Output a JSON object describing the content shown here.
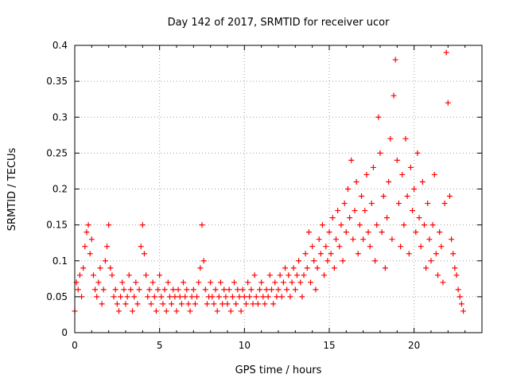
{
  "chart_data": {
    "type": "scatter",
    "title": "Day 142 of 2017, SRMTID for receiver ucor",
    "xlabel": "GPS time / hours",
    "ylabel": "SRMTID / TECUs",
    "xlim": [
      0,
      24
    ],
    "ylim": [
      0,
      0.4
    ],
    "xticks": [
      0,
      5,
      10,
      15,
      20
    ],
    "xtick_labels": [
      "0",
      "5",
      "10",
      "15",
      "20"
    ],
    "yticks": [
      0,
      0.05,
      0.1,
      0.15,
      0.2,
      0.25,
      0.3,
      0.35,
      0.4
    ],
    "ytick_labels": [
      "0",
      "0.05",
      "0.1",
      "0.15",
      "0.2",
      "0.25",
      "0.3",
      "0.35",
      "0.4"
    ],
    "grid": true,
    "marker": "plus",
    "color": "#ff0000",
    "series": [
      {
        "name": "SRMTID",
        "points": [
          [
            0.0,
            0.03
          ],
          [
            0.1,
            0.07
          ],
          [
            0.2,
            0.06
          ],
          [
            0.3,
            0.08
          ],
          [
            0.4,
            0.05
          ],
          [
            0.5,
            0.09
          ],
          [
            0.6,
            0.12
          ],
          [
            0.7,
            0.14
          ],
          [
            0.8,
            0.15
          ],
          [
            0.9,
            0.11
          ],
          [
            1.0,
            0.13
          ],
          [
            1.1,
            0.08
          ],
          [
            1.2,
            0.06
          ],
          [
            1.3,
            0.05
          ],
          [
            1.4,
            0.07
          ],
          [
            1.5,
            0.09
          ],
          [
            1.6,
            0.04
          ],
          [
            1.7,
            0.06
          ],
          [
            1.8,
            0.1
          ],
          [
            1.9,
            0.12
          ],
          [
            2.0,
            0.15
          ],
          [
            2.1,
            0.09
          ],
          [
            2.2,
            0.08
          ],
          [
            2.3,
            0.05
          ],
          [
            2.4,
            0.06
          ],
          [
            2.5,
            0.04
          ],
          [
            2.6,
            0.03
          ],
          [
            2.7,
            0.05
          ],
          [
            2.8,
            0.07
          ],
          [
            2.9,
            0.06
          ],
          [
            3.0,
            0.04
          ],
          [
            3.1,
            0.05
          ],
          [
            3.2,
            0.08
          ],
          [
            3.3,
            0.06
          ],
          [
            3.4,
            0.03
          ],
          [
            3.5,
            0.05
          ],
          [
            3.6,
            0.07
          ],
          [
            3.7,
            0.04
          ],
          [
            3.8,
            0.06
          ],
          [
            3.9,
            0.12
          ],
          [
            4.0,
            0.15
          ],
          [
            4.1,
            0.11
          ],
          [
            4.2,
            0.08
          ],
          [
            4.3,
            0.05
          ],
          [
            4.4,
            0.06
          ],
          [
            4.5,
            0.04
          ],
          [
            4.6,
            0.07
          ],
          [
            4.7,
            0.05
          ],
          [
            4.8,
            0.03
          ],
          [
            4.9,
            0.06
          ],
          [
            5.0,
            0.08
          ],
          [
            5.1,
            0.05
          ],
          [
            5.2,
            0.04
          ],
          [
            5.3,
            0.06
          ],
          [
            5.4,
            0.03
          ],
          [
            5.5,
            0.07
          ],
          [
            5.6,
            0.05
          ],
          [
            5.7,
            0.04
          ],
          [
            5.8,
            0.06
          ],
          [
            5.9,
            0.05
          ],
          [
            6.0,
            0.03
          ],
          [
            6.1,
            0.06
          ],
          [
            6.2,
            0.05
          ],
          [
            6.3,
            0.04
          ],
          [
            6.4,
            0.07
          ],
          [
            6.5,
            0.05
          ],
          [
            6.6,
            0.06
          ],
          [
            6.7,
            0.04
          ],
          [
            6.8,
            0.03
          ],
          [
            6.9,
            0.05
          ],
          [
            7.0,
            0.06
          ],
          [
            7.1,
            0.04
          ],
          [
            7.2,
            0.05
          ],
          [
            7.3,
            0.07
          ],
          [
            7.4,
            0.09
          ],
          [
            7.5,
            0.15
          ],
          [
            7.6,
            0.1
          ],
          [
            7.7,
            0.06
          ],
          [
            7.8,
            0.04
          ],
          [
            7.9,
            0.05
          ],
          [
            8.0,
            0.07
          ],
          [
            8.1,
            0.05
          ],
          [
            8.2,
            0.04
          ],
          [
            8.3,
            0.06
          ],
          [
            8.4,
            0.03
          ],
          [
            8.5,
            0.05
          ],
          [
            8.6,
            0.07
          ],
          [
            8.7,
            0.04
          ],
          [
            8.8,
            0.06
          ],
          [
            8.9,
            0.05
          ],
          [
            9.0,
            0.04
          ],
          [
            9.1,
            0.06
          ],
          [
            9.2,
            0.03
          ],
          [
            9.3,
            0.05
          ],
          [
            9.4,
            0.07
          ],
          [
            9.5,
            0.04
          ],
          [
            9.6,
            0.06
          ],
          [
            9.7,
            0.05
          ],
          [
            9.8,
            0.03
          ],
          [
            9.9,
            0.06
          ],
          [
            10.0,
            0.05
          ],
          [
            10.1,
            0.04
          ],
          [
            10.2,
            0.07
          ],
          [
            10.3,
            0.05
          ],
          [
            10.4,
            0.06
          ],
          [
            10.5,
            0.04
          ],
          [
            10.6,
            0.08
          ],
          [
            10.7,
            0.05
          ],
          [
            10.8,
            0.04
          ],
          [
            10.9,
            0.06
          ],
          [
            11.0,
            0.07
          ],
          [
            11.1,
            0.05
          ],
          [
            11.2,
            0.04
          ],
          [
            11.3,
            0.06
          ],
          [
            11.4,
            0.05
          ],
          [
            11.5,
            0.08
          ],
          [
            11.6,
            0.06
          ],
          [
            11.7,
            0.04
          ],
          [
            11.8,
            0.07
          ],
          [
            11.9,
            0.05
          ],
          [
            12.0,
            0.06
          ],
          [
            12.1,
            0.08
          ],
          [
            12.2,
            0.05
          ],
          [
            12.3,
            0.07
          ],
          [
            12.4,
            0.09
          ],
          [
            12.5,
            0.06
          ],
          [
            12.6,
            0.08
          ],
          [
            12.7,
            0.05
          ],
          [
            12.8,
            0.07
          ],
          [
            12.9,
            0.09
          ],
          [
            13.0,
            0.06
          ],
          [
            13.1,
            0.08
          ],
          [
            13.2,
            0.1
          ],
          [
            13.3,
            0.07
          ],
          [
            13.4,
            0.05
          ],
          [
            13.5,
            0.08
          ],
          [
            13.6,
            0.11
          ],
          [
            13.7,
            0.09
          ],
          [
            13.8,
            0.14
          ],
          [
            13.9,
            0.07
          ],
          [
            14.0,
            0.12
          ],
          [
            14.1,
            0.1
          ],
          [
            14.2,
            0.06
          ],
          [
            14.3,
            0.09
          ],
          [
            14.4,
            0.13
          ],
          [
            14.5,
            0.11
          ],
          [
            14.6,
            0.15
          ],
          [
            14.7,
            0.08
          ],
          [
            14.8,
            0.12
          ],
          [
            14.9,
            0.1
          ],
          [
            15.0,
            0.14
          ],
          [
            15.1,
            0.11
          ],
          [
            15.2,
            0.16
          ],
          [
            15.3,
            0.09
          ],
          [
            15.4,
            0.13
          ],
          [
            15.5,
            0.17
          ],
          [
            15.6,
            0.12
          ],
          [
            15.7,
            0.15
          ],
          [
            15.8,
            0.1
          ],
          [
            15.9,
            0.18
          ],
          [
            16.0,
            0.14
          ],
          [
            16.1,
            0.2
          ],
          [
            16.2,
            0.16
          ],
          [
            16.3,
            0.24
          ],
          [
            16.4,
            0.13
          ],
          [
            16.5,
            0.17
          ],
          [
            16.6,
            0.21
          ],
          [
            16.7,
            0.11
          ],
          [
            16.8,
            0.15
          ],
          [
            16.9,
            0.19
          ],
          [
            17.0,
            0.13
          ],
          [
            17.1,
            0.17
          ],
          [
            17.2,
            0.22
          ],
          [
            17.3,
            0.14
          ],
          [
            17.4,
            0.12
          ],
          [
            17.5,
            0.18
          ],
          [
            17.6,
            0.23
          ],
          [
            17.7,
            0.1
          ],
          [
            17.8,
            0.15
          ],
          [
            17.9,
            0.3
          ],
          [
            18.0,
            0.25
          ],
          [
            18.1,
            0.14
          ],
          [
            18.2,
            0.19
          ],
          [
            18.3,
            0.09
          ],
          [
            18.4,
            0.16
          ],
          [
            18.5,
            0.21
          ],
          [
            18.6,
            0.27
          ],
          [
            18.7,
            0.13
          ],
          [
            18.8,
            0.33
          ],
          [
            18.9,
            0.38
          ],
          [
            19.0,
            0.24
          ],
          [
            19.1,
            0.18
          ],
          [
            19.2,
            0.12
          ],
          [
            19.3,
            0.22
          ],
          [
            19.4,
            0.15
          ],
          [
            19.5,
            0.27
          ],
          [
            19.6,
            0.19
          ],
          [
            19.7,
            0.11
          ],
          [
            19.8,
            0.23
          ],
          [
            19.9,
            0.17
          ],
          [
            20.0,
            0.2
          ],
          [
            20.1,
            0.14
          ],
          [
            20.2,
            0.25
          ],
          [
            20.3,
            0.16
          ],
          [
            20.4,
            0.12
          ],
          [
            20.5,
            0.21
          ],
          [
            20.6,
            0.15
          ],
          [
            20.7,
            0.09
          ],
          [
            20.8,
            0.18
          ],
          [
            20.9,
            0.13
          ],
          [
            21.0,
            0.1
          ],
          [
            21.1,
            0.15
          ],
          [
            21.2,
            0.22
          ],
          [
            21.3,
            0.11
          ],
          [
            21.4,
            0.08
          ],
          [
            21.5,
            0.14
          ],
          [
            21.6,
            0.12
          ],
          [
            21.7,
            0.07
          ],
          [
            21.8,
            0.18
          ],
          [
            21.9,
            0.39
          ],
          [
            22.0,
            0.32
          ],
          [
            22.1,
            0.19
          ],
          [
            22.2,
            0.13
          ],
          [
            22.3,
            0.11
          ],
          [
            22.4,
            0.09
          ],
          [
            22.5,
            0.08
          ],
          [
            22.6,
            0.06
          ],
          [
            22.7,
            0.05
          ],
          [
            22.8,
            0.04
          ],
          [
            22.9,
            0.03
          ]
        ]
      }
    ]
  }
}
